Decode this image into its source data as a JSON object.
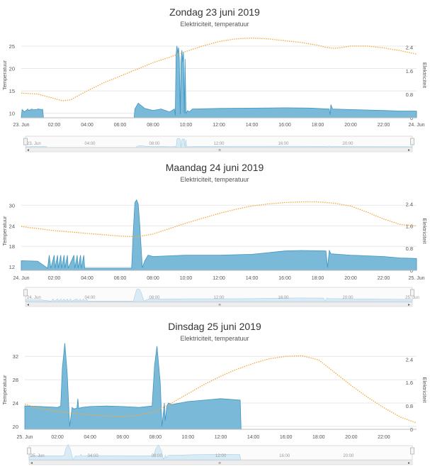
{
  "colors": {
    "area_fill": "#7ab9d8",
    "area_stroke": "#3f95c2",
    "temperature_line": "#f2a93b",
    "grid": "#e8e8e8",
    "axis_text": "#555555",
    "title_text": "#333333",
    "navigator_fill": "#d9ebf5",
    "navigator_border": "#c9c9c9",
    "scrollbar": "#eeeeee"
  },
  "chart_data": [
    {
      "type": "area",
      "title": "Zondag 23 juni 2019",
      "subtitle": "Elektriciteit, temperatuur",
      "ylabel_left": "Temperatuur",
      "ylabel_right": "Elektriciteit",
      "y_left_ticks": [
        "10",
        "15",
        "20",
        "25"
      ],
      "y_left_range": [
        9,
        28
      ],
      "y_right_ticks": [
        "0",
        "0.8",
        "1.6",
        "2.4"
      ],
      "y_right_range": [
        0,
        2.9
      ],
      "x_range": [
        0,
        24
      ],
      "x_ticks": [
        "23. Jun",
        "02:00",
        "04:00",
        "06:00",
        "08:00",
        "10:00",
        "12:00",
        "14:00",
        "16:00",
        "18:00",
        "20:00",
        "22:00",
        "24. Jun"
      ],
      "navigator_ticks": [
        "23. Jun",
        "04:00",
        "08:00",
        "12:00",
        "16:00",
        "20:00"
      ],
      "scrollbar_grip": "≡",
      "series": [
        {
          "name": "Temperatuur",
          "axis": "left",
          "x": [
            0,
            1,
            2,
            2.5,
            3,
            4,
            5,
            6,
            7,
            8,
            9,
            10,
            11,
            12,
            13,
            14,
            15,
            16,
            17,
            18,
            18.5,
            19,
            19.5,
            20,
            21,
            22,
            23,
            24
          ],
          "y": [
            14.5,
            14.3,
            13.3,
            12.8,
            13.0,
            15.0,
            16.8,
            18.3,
            19.8,
            21.3,
            22.5,
            23.8,
            25.0,
            26.0,
            26.6,
            26.8,
            26.6,
            26.2,
            25.8,
            25.2,
            24.7,
            24.5,
            24.7,
            25.0,
            25.0,
            24.6,
            24.0,
            23.2
          ]
        },
        {
          "name": "Elektriciteit",
          "axis": "right",
          "x": [
            0,
            0.05,
            0.2,
            0.4,
            0.45,
            0.65,
            0.7,
            0.95,
            1.0,
            1.25,
            1.3,
            1.35,
            6.85,
            6.9,
            7.1,
            7.5,
            8.0,
            8.5,
            9.0,
            9.3,
            9.35,
            9.4,
            9.45,
            9.5,
            9.55,
            9.6,
            9.65,
            9.7,
            9.75,
            9.8,
            9.85,
            9.9,
            9.95,
            10.0,
            10.1,
            10.2,
            10.4,
            12.0,
            16.0,
            17.5,
            18.7,
            18.75,
            18.8,
            18.9,
            20.0,
            22.0,
            23.0,
            24.0
          ],
          "y": [
            0,
            0.28,
            0.2,
            0.3,
            0.25,
            0.3,
            0.27,
            0.28,
            0.3,
            0.28,
            0.29,
            0,
            0,
            0.3,
            0.5,
            0.32,
            0.25,
            0.3,
            0.2,
            0.3,
            0.08,
            2.15,
            2.45,
            2.2,
            2.4,
            2.0,
            0.12,
            1.9,
            2.3,
            1.9,
            2.25,
            0.15,
            2.0,
            0.15,
            0.25,
            0.2,
            0.3,
            0.32,
            0.34,
            0.33,
            0.3,
            0.1,
            0.45,
            0.3,
            0.28,
            0.25,
            0.23,
            0.23
          ]
        }
      ]
    },
    {
      "type": "area",
      "title": "Maandag 24 juni 2019",
      "subtitle": "Elektriciteit, temperatuur",
      "ylabel_left": "Temperatuur",
      "ylabel_right": "Elektriciteit",
      "y_left_ticks": [
        "12",
        "18",
        "24",
        "30"
      ],
      "y_left_range": [
        11,
        34
      ],
      "y_right_ticks": [
        "0",
        "0.8",
        "1.6",
        "2.4"
      ],
      "y_right_range": [
        0,
        2.85
      ],
      "x_range": [
        0,
        24
      ],
      "x_ticks": [
        "24. Jun",
        "02:00",
        "04:00",
        "06:00",
        "08:00",
        "10:00",
        "12:00",
        "14:00",
        "16:00",
        "18:00",
        "20:00",
        "22:00",
        "25. Jun"
      ],
      "navigator_ticks": [
        "24. Jun",
        "04:00",
        "08:00",
        "12:00",
        "16:00",
        "20:00",
        "25. Jun"
      ],
      "scrollbar_grip": "≡",
      "series": [
        {
          "name": "Temperatuur",
          "axis": "left",
          "x": [
            0,
            1,
            2,
            3,
            4,
            5,
            6,
            7,
            8,
            9,
            10,
            11,
            12,
            13,
            14,
            15,
            16,
            17,
            18,
            19,
            20,
            21,
            22,
            23,
            24
          ],
          "y": [
            23.8,
            23.2,
            22.6,
            22.2,
            21.8,
            21.4,
            21.0,
            20.8,
            21.6,
            23.2,
            24.8,
            26.2,
            27.6,
            28.8,
            29.8,
            30.4,
            30.8,
            31.0,
            31.0,
            30.6,
            29.8,
            28.0,
            26.0,
            24.4,
            24.0
          ],
          "y_note": "smooth estimate"
        },
        {
          "name": "Elektriciteit",
          "axis": "right",
          "x": [
            0,
            1.0,
            1.6,
            1.7,
            1.8,
            2.0,
            2.05,
            2.2,
            2.25,
            2.4,
            2.45,
            2.6,
            2.65,
            2.8,
            2.85,
            3.2,
            3.25,
            3.4,
            3.45,
            3.6,
            3.65,
            3.8,
            3.85,
            4.0,
            4.05,
            6.7,
            6.8,
            6.9,
            7.0,
            7.1,
            7.2,
            7.35,
            7.5,
            7.7,
            8.0,
            10.0,
            12.0,
            14.0,
            16.0,
            17.0,
            18.5,
            18.6,
            18.7,
            18.8,
            20.0,
            22.0,
            23.0,
            24.0
          ],
          "y": [
            0.35,
            0.33,
            0.08,
            0.55,
            0.08,
            0.55,
            0.08,
            0.55,
            0.08,
            0.55,
            0.08,
            0.55,
            0.08,
            0.55,
            0.08,
            0.55,
            0.08,
            0.55,
            0.08,
            0.55,
            0.08,
            0.55,
            0.08,
            0.08,
            0.08,
            0.08,
            1.4,
            2.45,
            2.55,
            2.4,
            1.6,
            0.1,
            0.35,
            0.55,
            0.5,
            0.55,
            0.55,
            0.58,
            0.7,
            0.72,
            0.7,
            0.1,
            0.72,
            0.6,
            0.55,
            0.5,
            0.45,
            0.43
          ]
        }
      ]
    },
    {
      "type": "area",
      "title": "Dinsdag 25 juni 2019",
      "subtitle": "Elektriciteit, temperatuur",
      "ylabel_left": "Temperatuur",
      "ylabel_right": "Elektriciteit",
      "y_left_ticks": [
        "20",
        "24",
        "28",
        "32"
      ],
      "y_left_range": [
        19.5,
        33
      ],
      "y_right_ticks": [
        "0",
        "0.8",
        "1.6",
        "2.4"
      ],
      "y_right_range": [
        0,
        2.7
      ],
      "x_range": [
        0,
        24
      ],
      "x_ticks": [
        "25. Jun",
        "02:00",
        "04:00",
        "06:00",
        "08:00",
        "10:00",
        "12:00",
        "14:00",
        "16:00",
        "18:00",
        "20:00",
        "22:00"
      ],
      "navigator_ticks": [
        "25. Jun",
        "04:00",
        "08:00",
        "12:00",
        "16:00",
        "20:00"
      ],
      "scrollbar_grip": "≡",
      "series": [
        {
          "name": "Temperatuur",
          "axis": "left",
          "x": [
            0,
            1,
            2,
            3,
            4,
            5,
            6,
            7,
            8,
            9,
            10,
            11,
            12,
            13,
            14,
            15,
            16,
            17,
            18,
            19,
            20,
            21,
            22,
            23,
            24
          ],
          "y": [
            23.8,
            23.0,
            22.6,
            22.2,
            22.0,
            21.8,
            21.7,
            21.9,
            22.6,
            24.0,
            25.6,
            27.2,
            28.6,
            29.8,
            30.8,
            31.6,
            32.0,
            32.1,
            31.4,
            29.2,
            27.0,
            25.0,
            23.2,
            21.6,
            20.6
          ]
        },
        {
          "name": "Elektriciteit",
          "axis": "right",
          "x": [
            0,
            1.0,
            2.0,
            2.2,
            2.3,
            2.45,
            2.6,
            2.75,
            2.9,
            3.0,
            3.2,
            3.25,
            3.3,
            3.5,
            4.0,
            5.0,
            6.0,
            7.0,
            7.8,
            7.95,
            8.1,
            8.3,
            8.4,
            8.55,
            8.6,
            8.7,
            8.8,
            9.0,
            10.0,
            11.0,
            12.0,
            13.2,
            13.25
          ],
          "y": [
            0.8,
            0.78,
            0.75,
            0.8,
            2.1,
            2.95,
            1.9,
            0.1,
            0.75,
            0.7,
            0.72,
            1.05,
            0.72,
            0.75,
            0.78,
            0.8,
            0.78,
            0.75,
            0.8,
            2.2,
            2.85,
            1.6,
            0.1,
            0.9,
            0.3,
            0.8,
            0.9,
            0.85,
            0.95,
            1.0,
            1.05,
            1.0,
            0
          ]
        }
      ]
    }
  ]
}
